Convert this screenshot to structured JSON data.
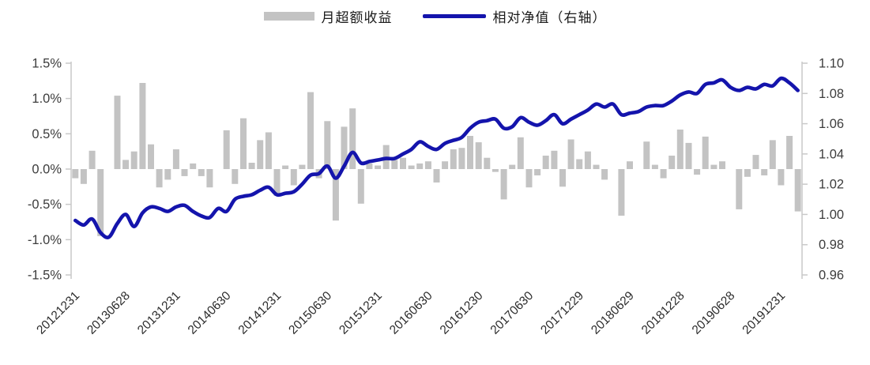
{
  "page": {
    "background": "#FFFFFF"
  },
  "legend": {
    "bar_label": "月超额收益",
    "line_label": "相对净值（右轴）"
  },
  "colors": {
    "bar": "#C3C3C3",
    "line": "#1414AC",
    "axis": "#C9C9C9",
    "axis_text": "#3D3D3D"
  },
  "chart_data": {
    "type": "bar",
    "subtype": "bar+line dual-axis combo",
    "title": "",
    "xlabel": "",
    "ylabel_left": "",
    "ylabel_right": "",
    "grid": false,
    "legend_position": "top-center",
    "x": [
      "201212",
      "201301",
      "201302",
      "201303",
      "201304",
      "201305",
      "201306",
      "201307",
      "201308",
      "201309",
      "201310",
      "201311",
      "201312",
      "201401",
      "201402",
      "201403",
      "201404",
      "201405",
      "201406",
      "201407",
      "201408",
      "201409",
      "201410",
      "201411",
      "201412",
      "201501",
      "201502",
      "201503",
      "201504",
      "201505",
      "201506",
      "201507",
      "201508",
      "201509",
      "201510",
      "201511",
      "201512",
      "201601",
      "201602",
      "201603",
      "201604",
      "201605",
      "201606",
      "201607",
      "201608",
      "201609",
      "201610",
      "201611",
      "201612",
      "201701",
      "201702",
      "201703",
      "201704",
      "201705",
      "201706",
      "201707",
      "201708",
      "201709",
      "201710",
      "201711",
      "201712",
      "201801",
      "201802",
      "201803",
      "201804",
      "201805",
      "201806",
      "201807",
      "201808",
      "201809",
      "201810",
      "201811",
      "201812",
      "201901",
      "201902",
      "201903",
      "201904",
      "201905",
      "201906",
      "201907",
      "201908",
      "201909",
      "201910",
      "201911",
      "201912",
      "202001",
      "202002"
    ],
    "series": [
      {
        "name": "月超额收益",
        "type": "bar",
        "axis": "left",
        "unit": "%",
        "values": [
          -0.13,
          -0.21,
          0.26,
          -0.95,
          0.0,
          1.04,
          0.13,
          0.25,
          1.22,
          0.35,
          -0.26,
          -0.15,
          0.28,
          -0.1,
          0.08,
          -0.1,
          -0.26,
          0.0,
          0.55,
          -0.21,
          0.72,
          0.09,
          0.41,
          0.52,
          -0.38,
          0.05,
          -0.23,
          0.06,
          1.09,
          -0.13,
          0.68,
          -0.73,
          0.6,
          0.86,
          -0.49,
          0.08,
          0.05,
          0.34,
          0.13,
          0.16,
          0.05,
          0.08,
          0.11,
          -0.19,
          0.11,
          0.28,
          0.3,
          0.47,
          0.38,
          0.16,
          -0.04,
          -0.43,
          0.06,
          0.45,
          -0.26,
          -0.09,
          0.19,
          0.26,
          -0.25,
          0.42,
          0.14,
          0.25,
          0.06,
          -0.15,
          0.0,
          -0.66,
          0.11,
          0.0,
          0.39,
          0.06,
          -0.13,
          0.19,
          0.56,
          0.37,
          -0.08,
          0.46,
          0.06,
          0.11,
          0.0,
          -0.57,
          -0.11,
          0.2,
          -0.09,
          0.41,
          -0.23,
          0.47,
          -0.6
        ]
      },
      {
        "name": "相对净值（右轴）",
        "type": "line",
        "axis": "right",
        "unit": "",
        "values": [
          0.996,
          0.993,
          0.997,
          0.988,
          0.985,
          0.994,
          1.0,
          0.992,
          1.001,
          1.005,
          1.004,
          1.002,
          1.005,
          1.006,
          1.002,
          0.999,
          0.998,
          1.004,
          1.002,
          1.01,
          1.012,
          1.013,
          1.016,
          1.018,
          1.013,
          1.014,
          1.015,
          1.02,
          1.026,
          1.027,
          1.032,
          1.024,
          1.032,
          1.041,
          1.034,
          1.035,
          1.036,
          1.037,
          1.037,
          1.04,
          1.043,
          1.048,
          1.045,
          1.043,
          1.047,
          1.049,
          1.051,
          1.057,
          1.061,
          1.062,
          1.063,
          1.057,
          1.058,
          1.064,
          1.061,
          1.059,
          1.062,
          1.066,
          1.06,
          1.063,
          1.066,
          1.069,
          1.073,
          1.071,
          1.073,
          1.066,
          1.067,
          1.068,
          1.071,
          1.072,
          1.072,
          1.075,
          1.079,
          1.081,
          1.08,
          1.086,
          1.087,
          1.089,
          1.084,
          1.082,
          1.084,
          1.083,
          1.086,
          1.085,
          1.09,
          1.087,
          1.082
        ]
      }
    ],
    "left_axis": {
      "min": -1.5,
      "max": 1.5,
      "step": 0.5,
      "format": "percent",
      "tick_labels": [
        "1.5%",
        "1.0%",
        "0.5%",
        "0.0%",
        "-0.5%",
        "-1.0%",
        "-1.5%"
      ]
    },
    "right_axis": {
      "min": 0.96,
      "max": 1.1,
      "step": 0.02,
      "tick_labels": [
        "1.10",
        "1.08",
        "1.06",
        "1.04",
        "1.02",
        "1.00",
        "0.98",
        "0.96"
      ]
    },
    "x_axis": {
      "tick_labels": [
        "20121231",
        "20130628",
        "20131231",
        "20140630",
        "20141231",
        "20150630",
        "20151231",
        "20160630",
        "20161230",
        "20170630",
        "20171229",
        "20180629",
        "20181228",
        "20190628",
        "20191231"
      ],
      "tick_every_n_points": 6,
      "label_rotation_deg": 45
    }
  }
}
